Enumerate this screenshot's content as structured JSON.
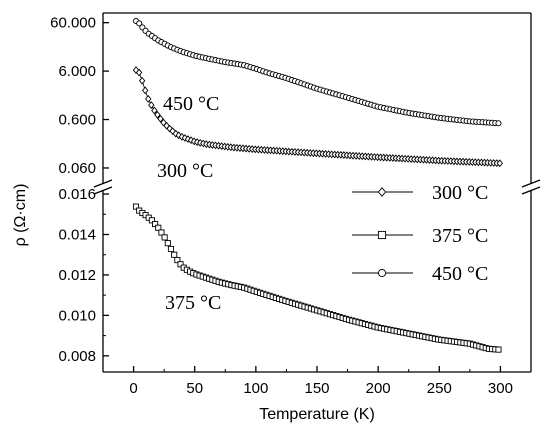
{
  "chart_data": {
    "type": "line",
    "title": "",
    "xlabel": "Temperature (K)",
    "ylabel": "ρ (Ω·cm)",
    "xlim": [
      -25,
      325
    ],
    "x_ticks": [
      0,
      50,
      100,
      150,
      200,
      250,
      300
    ],
    "x_tick_labels": [
      "0",
      "50",
      "100",
      "150",
      "200",
      "250",
      "300"
    ],
    "y_axis_broken": true,
    "y_upper_panel": {
      "scale": "log",
      "ylim": [
        0.028,
        95
      ],
      "ticks": [
        60,
        6,
        0.6,
        0.06
      ],
      "tick_labels": [
        "60.000",
        "6.000",
        "0.600",
        "0.060"
      ]
    },
    "y_lower_panel": {
      "scale": "linear",
      "ylim": [
        0.0072,
        0.0162
      ],
      "ticks": [
        0.008,
        0.01,
        0.012,
        0.014,
        0.016
      ],
      "tick_labels": [
        "0.008",
        "0.010",
        "0.012",
        "0.014",
        "0.016"
      ]
    },
    "series": [
      {
        "name": "300 °C",
        "marker": "diamond",
        "panel": "upper",
        "points": [
          [
            2,
            6.3
          ],
          [
            4,
            6.0
          ],
          [
            6,
            4.6
          ],
          [
            9,
            2.6
          ],
          [
            12,
            1.6
          ],
          [
            16,
            1.0
          ],
          [
            20,
            0.72
          ],
          [
            25,
            0.5
          ],
          [
            30,
            0.38
          ],
          [
            35,
            0.3
          ],
          [
            40,
            0.26
          ],
          [
            50,
            0.21
          ],
          [
            60,
            0.185
          ],
          [
            80,
            0.16
          ],
          [
            100,
            0.145
          ],
          [
            150,
            0.12
          ],
          [
            200,
            0.1
          ],
          [
            250,
            0.085
          ],
          [
            300,
            0.075
          ]
        ]
      },
      {
        "name": "375 °C",
        "marker": "square",
        "panel": "lower",
        "points": [
          [
            2,
            0.01538
          ],
          [
            5,
            0.01515
          ],
          [
            10,
            0.01495
          ],
          [
            15,
            0.0147
          ],
          [
            20,
            0.01435
          ],
          [
            25,
            0.0139
          ],
          [
            30,
            0.01335
          ],
          [
            35,
            0.0128
          ],
          [
            40,
            0.0124
          ],
          [
            45,
            0.0122
          ],
          [
            50,
            0.01205
          ],
          [
            60,
            0.01185
          ],
          [
            70,
            0.01165
          ],
          [
            80,
            0.0115
          ],
          [
            90,
            0.01138
          ],
          [
            100,
            0.01118
          ],
          [
            125,
            0.0107
          ],
          [
            150,
            0.01025
          ],
          [
            175,
            0.0098
          ],
          [
            200,
            0.0094
          ],
          [
            225,
            0.0091
          ],
          [
            250,
            0.0088
          ],
          [
            275,
            0.0086
          ],
          [
            290,
            0.00835
          ],
          [
            300,
            0.0083
          ]
        ]
      },
      {
        "name": "450 °C",
        "marker": "circle",
        "panel": "upper",
        "points": [
          [
            2,
            65
          ],
          [
            5,
            57
          ],
          [
            8,
            45
          ],
          [
            12,
            36
          ],
          [
            20,
            26
          ],
          [
            30,
            19
          ],
          [
            40,
            15
          ],
          [
            50,
            12.5
          ],
          [
            60,
            11
          ],
          [
            75,
            9.2
          ],
          [
            90,
            8
          ],
          [
            100,
            6.7
          ],
          [
            110,
            5.5
          ],
          [
            125,
            4.3
          ],
          [
            150,
            2.6
          ],
          [
            175,
            1.7
          ],
          [
            200,
            1.1
          ],
          [
            225,
            0.82
          ],
          [
            250,
            0.65
          ],
          [
            275,
            0.55
          ],
          [
            300,
            0.5
          ]
        ]
      }
    ],
    "annotations": [
      "450 °C",
      "300 °C",
      "375 °C"
    ],
    "legend": {
      "position": "right",
      "entries": [
        "300 °C",
        "375 °C",
        "450 °C"
      ]
    },
    "grid": false
  }
}
